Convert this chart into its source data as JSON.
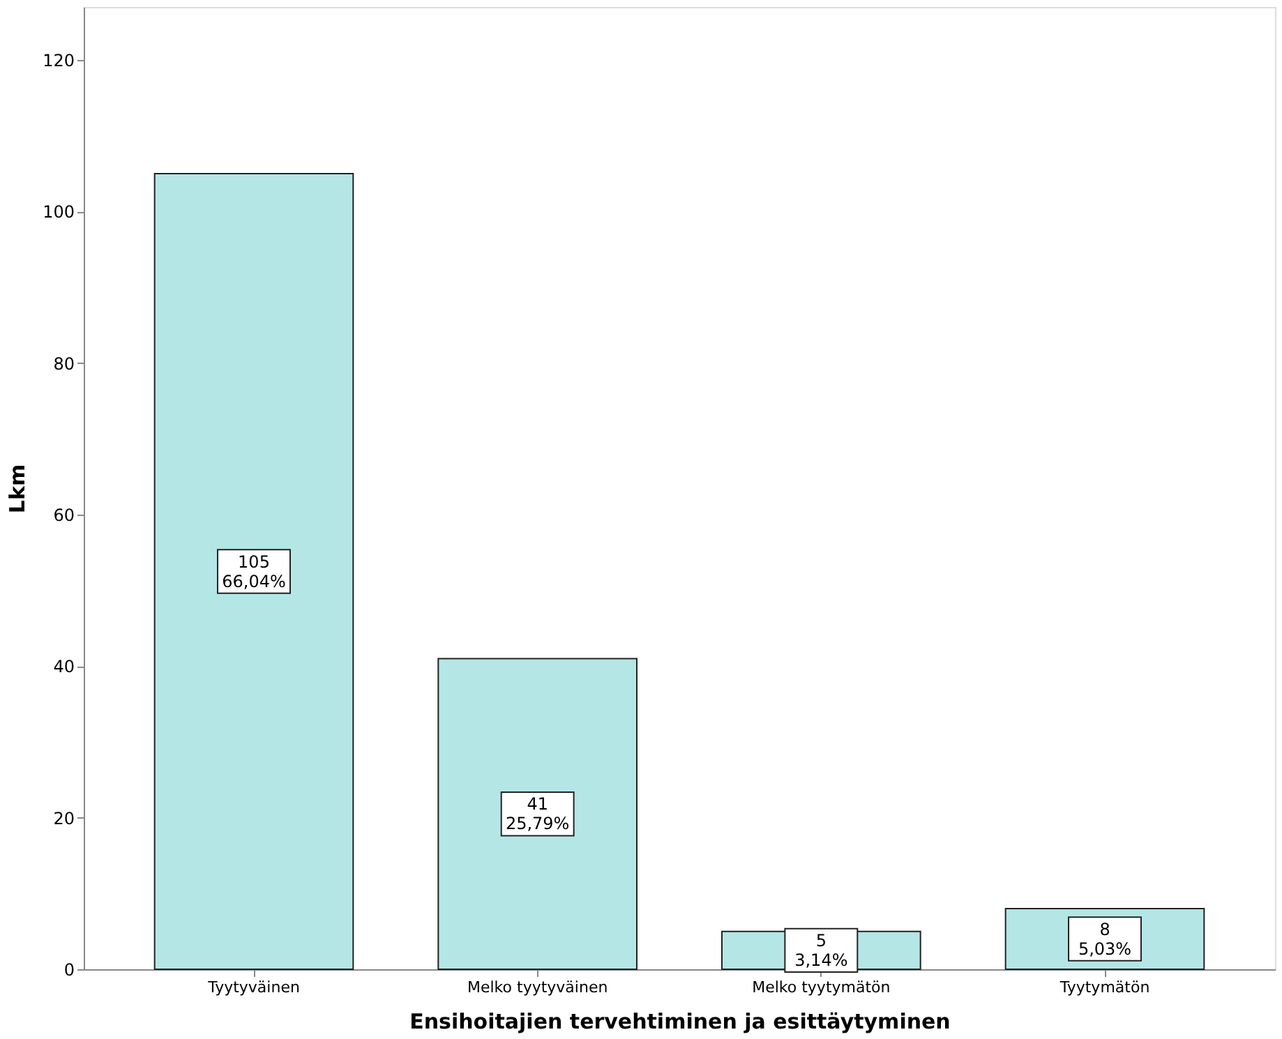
{
  "chart_data": {
    "type": "bar",
    "xlabel": "Ensihoitajien tervehtiminen ja esittäytyminen",
    "ylabel": "Lkm",
    "categories": [
      "Tyytyväinen",
      "Melko tyytyväinen",
      "Melko tyytymätön",
      "Tyytymätön"
    ],
    "values": [
      105,
      41,
      5,
      8
    ],
    "value_labels": [
      "105\n66,04%",
      "41\n25,79%",
      "5\n3,14%",
      "8\n5,03%"
    ],
    "color": "#b4e6e6",
    "ylim": [
      0,
      127
    ],
    "yticks": [
      0,
      20,
      40,
      60,
      80,
      100,
      120
    ],
    "grid": false
  }
}
